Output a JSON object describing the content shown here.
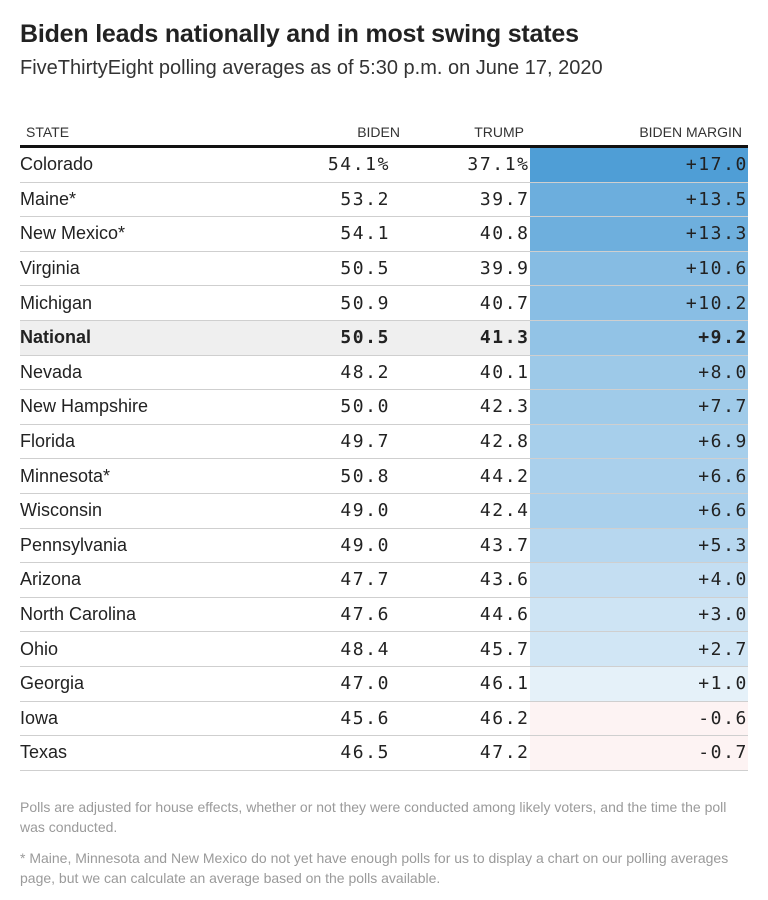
{
  "title": "Biden leads nationally and in most swing states",
  "subtitle": "FiveThirtyEight polling averages as of 5:30 p.m. on June 17, 2020",
  "columns": {
    "state": "STATE",
    "biden": "BIDEN",
    "trump": "TRUMP",
    "margin": "BIDEN MARGIN"
  },
  "notes": {
    "note1": "Polls are adjusted for house effects, whether or not they were conducted among likely voters, and the time the poll was conducted.",
    "note2": "* Maine, Minnesota and New Mexico do not yet have enough polls for us to display a chart on our polling averages page, but we can calculate an average based on the polls available."
  },
  "colors": {
    "positive_max": "#4f9ed6",
    "positive_min": "#f4f9fd",
    "negative": "#fdf3f3"
  },
  "chart_data": {
    "type": "table",
    "title": "Biden leads nationally and in most swing states",
    "subtitle": "FiveThirtyEight polling averages as of 5:30 p.m. on June 17, 2020",
    "rows": [
      {
        "state": "Colorado",
        "biden": "54.1%",
        "trump": "37.1%",
        "margin": "+17.0",
        "margin_value": 17.0
      },
      {
        "state": "Maine*",
        "biden": "53.2",
        "trump": "39.7",
        "margin": "+13.5",
        "margin_value": 13.5
      },
      {
        "state": "New Mexico*",
        "biden": "54.1",
        "trump": "40.8",
        "margin": "+13.3",
        "margin_value": 13.3
      },
      {
        "state": "Virginia",
        "biden": "50.5",
        "trump": "39.9",
        "margin": "+10.6",
        "margin_value": 10.6
      },
      {
        "state": "Michigan",
        "biden": "50.9",
        "trump": "40.7",
        "margin": "+10.2",
        "margin_value": 10.2
      },
      {
        "state": "National",
        "biden": "50.5",
        "trump": "41.3",
        "margin": "+9.2",
        "margin_value": 9.2,
        "highlight": true
      },
      {
        "state": "Nevada",
        "biden": "48.2",
        "trump": "40.1",
        "margin": "+8.0",
        "margin_value": 8.0
      },
      {
        "state": "New Hampshire",
        "biden": "50.0",
        "trump": "42.3",
        "margin": "+7.7",
        "margin_value": 7.7
      },
      {
        "state": "Florida",
        "biden": "49.7",
        "trump": "42.8",
        "margin": "+6.9",
        "margin_value": 6.9
      },
      {
        "state": "Minnesota*",
        "biden": "50.8",
        "trump": "44.2",
        "margin": "+6.6",
        "margin_value": 6.6
      },
      {
        "state": "Wisconsin",
        "biden": "49.0",
        "trump": "42.4",
        "margin": "+6.6",
        "margin_value": 6.6
      },
      {
        "state": "Pennsylvania",
        "biden": "49.0",
        "trump": "43.7",
        "margin": "+5.3",
        "margin_value": 5.3
      },
      {
        "state": "Arizona",
        "biden": "47.7",
        "trump": "43.6",
        "margin": "+4.0",
        "margin_value": 4.0
      },
      {
        "state": "North Carolina",
        "biden": "47.6",
        "trump": "44.6",
        "margin": "+3.0",
        "margin_value": 3.0
      },
      {
        "state": "Ohio",
        "biden": "48.4",
        "trump": "45.7",
        "margin": "+2.7",
        "margin_value": 2.7
      },
      {
        "state": "Georgia",
        "biden": "47.0",
        "trump": "46.1",
        "margin": "+1.0",
        "margin_value": 1.0
      },
      {
        "state": "Iowa",
        "biden": "45.6",
        "trump": "46.2",
        "margin": "-0.6",
        "margin_value": -0.6
      },
      {
        "state": "Texas",
        "biden": "46.5",
        "trump": "47.2",
        "margin": "-0.7",
        "margin_value": -0.7
      }
    ]
  }
}
